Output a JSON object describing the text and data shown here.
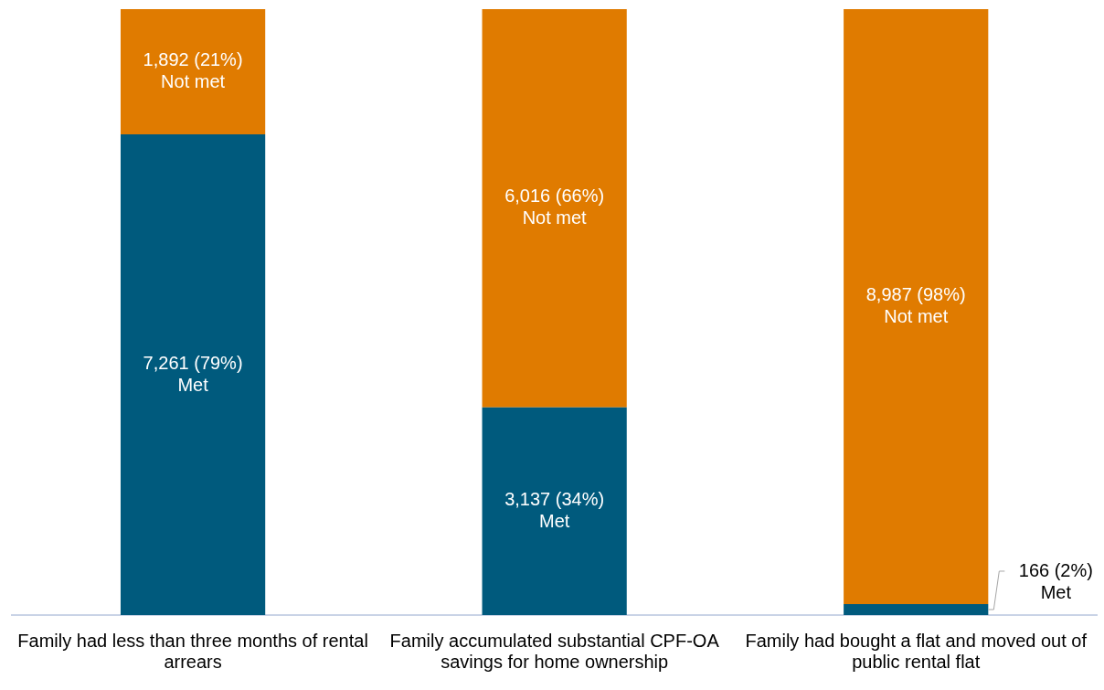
{
  "chart_data": {
    "type": "bar",
    "stacked": true,
    "legend": false,
    "grid": false,
    "categories": [
      "Family had less than three months of rental arrears",
      "Family accumulated substantial CPF-OA savings for home ownership",
      "Family had bought a flat and moved out of public rental flat"
    ],
    "series": [
      {
        "name": "Met",
        "color": "#005a7d",
        "values": [
          7261,
          3137,
          166
        ],
        "value_labels": [
          "7,261 (79%)",
          "3,137 (34%)",
          "166 (2%)"
        ]
      },
      {
        "name": "Not met",
        "color": "#e07b00",
        "values": [
          1892,
          6016,
          8987
        ],
        "value_labels": [
          "1,892 (21%)",
          "6,016 (66%)",
          "8,987 (98%)"
        ]
      }
    ]
  }
}
